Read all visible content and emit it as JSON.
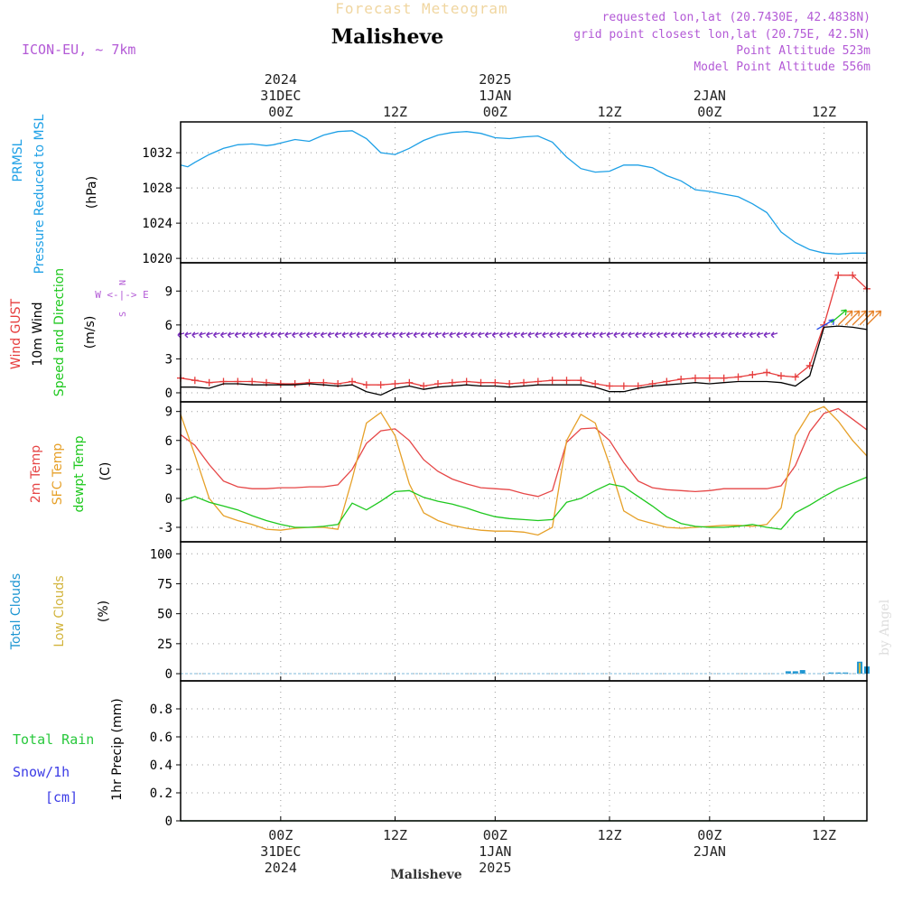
{
  "header": {
    "top_title": "Forecast Meteogram",
    "location": "Malisheve",
    "model": "ICON-EU, ~ 7km",
    "requested": "requested lon,lat (20.7430E, 42.4838N)",
    "grid": "grid point closest lon,lat (20.75E, 42.5N)",
    "point_alt": "Point Altitude 523m",
    "model_alt": "Model Point Altitude 556m",
    "footer_location": "Malisheve",
    "credit": "by Angel"
  },
  "colors": {
    "pressure": "#1ea0e6",
    "gust": "#e63c3c",
    "wind": "#000000",
    "wind_arrow": "#7b2fbe",
    "wind_arrow_alt": "#e67e22",
    "temp": "#e64646",
    "sfc": "#e6a028",
    "dew": "#1ec81e",
    "clouds_total": "#1e96d2",
    "clouds_low": "#d2b43c",
    "rain": "#28c83c",
    "snow": "#3c3ce6",
    "purple": "#b35ad6",
    "grid": "#999999"
  },
  "chart_data": {
    "type": "line",
    "x_unit": "hours since 2024-12-30 15Z",
    "x_range": [
      0,
      48
    ],
    "time_axis": {
      "ticks": [
        {
          "x": 7,
          "top": [
            "2024",
            "31DEC",
            "00Z"
          ],
          "bottom": [
            "00Z",
            "31DEC",
            "2024"
          ]
        },
        {
          "x": 15,
          "top": [
            "12Z"
          ],
          "bottom": [
            "12Z"
          ]
        },
        {
          "x": 22,
          "top": [
            "2025",
            "1JAN",
            "00Z"
          ],
          "bottom": [
            "00Z",
            "1JAN",
            "2025"
          ]
        },
        {
          "x": 30,
          "top": [
            "12Z"
          ],
          "bottom": [
            "12Z"
          ]
        },
        {
          "x": 37,
          "top": [
            "2JAN",
            "00Z"
          ],
          "bottom": [
            "00Z",
            "2JAN"
          ]
        },
        {
          "x": 45,
          "top": [
            "12Z"
          ],
          "bottom": [
            "12Z"
          ]
        }
      ]
    },
    "panels": [
      {
        "id": "pressure",
        "labels": [
          "PRMSL",
          "Pressure Reduced to MSL"
        ],
        "unit": "(hPa)",
        "ylim": [
          1019.5,
          1035.5
        ],
        "yticks": [
          1020,
          1024,
          1028,
          1032
        ],
        "series": [
          {
            "name": "PRMSL",
            "color_key": "pressure",
            "x": [
              0,
              0.5,
              1,
              2,
              3,
              4,
              5,
              6,
              6.5,
              7,
              8,
              9,
              10,
              11,
              12,
              13,
              14,
              15,
              16,
              17,
              18,
              19,
              20,
              21,
              22,
              23,
              24,
              25,
              26,
              27,
              28,
              29,
              30,
              31,
              32,
              33,
              34,
              35,
              36,
              37,
              38,
              39,
              40,
              41,
              42,
              43,
              44,
              45,
              46,
              47,
              48
            ],
            "y": [
              1030.6,
              1030.4,
              1030.9,
              1031.8,
              1032.5,
              1032.9,
              1033.0,
              1032.8,
              1032.9,
              1033.1,
              1033.5,
              1033.3,
              1034.0,
              1034.4,
              1034.5,
              1033.6,
              1032.0,
              1031.8,
              1032.5,
              1033.4,
              1034.0,
              1034.3,
              1034.4,
              1034.2,
              1033.7,
              1033.6,
              1033.8,
              1033.9,
              1033.2,
              1031.5,
              1030.2,
              1029.8,
              1029.9,
              1030.6,
              1030.6,
              1030.3,
              1029.4,
              1028.8,
              1027.8,
              1027.6,
              1027.3,
              1027.0,
              1026.2,
              1025.2,
              1023.0,
              1021.8,
              1021.0,
              1020.6,
              1020.5,
              1020.6,
              1020.6
            ]
          }
        ]
      },
      {
        "id": "wind",
        "labels": [
          "Wind GUST",
          "10m Wind",
          "Speed and Direction"
        ],
        "unit": "(m/s)",
        "compass": [
          "N",
          "W <-|-> E",
          "S"
        ],
        "ylim": [
          -0.8,
          11.5
        ],
        "yticks": [
          0,
          3,
          6,
          9
        ],
        "series": [
          {
            "name": "Wind GUST",
            "color_key": "gust",
            "marker": "plus",
            "x": [
              0,
              1,
              2,
              3,
              4,
              5,
              6,
              7,
              8,
              9,
              10,
              11,
              12,
              13,
              14,
              15,
              16,
              17,
              18,
              19,
              20,
              21,
              22,
              23,
              24,
              25,
              26,
              27,
              28,
              29,
              30,
              31,
              32,
              33,
              34,
              35,
              36,
              37,
              38,
              39,
              40,
              41,
              42,
              43,
              44,
              45,
              46,
              47,
              48
            ],
            "y": [
              1.3,
              1.1,
              0.9,
              1.0,
              1.0,
              1.0,
              0.9,
              0.8,
              0.8,
              0.9,
              0.9,
              0.8,
              1.0,
              0.7,
              0.7,
              0.8,
              0.9,
              0.6,
              0.8,
              0.9,
              1.0,
              0.9,
              0.9,
              0.8,
              0.9,
              1.0,
              1.1,
              1.1,
              1.1,
              0.8,
              0.6,
              0.6,
              0.6,
              0.8,
              1.0,
              1.2,
              1.3,
              1.3,
              1.3,
              1.4,
              1.6,
              1.8,
              1.5,
              1.4,
              2.4,
              6.0,
              10.4,
              10.4,
              9.2
            ]
          },
          {
            "name": "10m Wind",
            "color_key": "wind",
            "x": [
              0,
              1,
              2,
              3,
              4,
              5,
              6,
              7,
              8,
              9,
              10,
              11,
              12,
              13,
              14,
              15,
              16,
              17,
              18,
              19,
              20,
              21,
              22,
              23,
              24,
              25,
              26,
              27,
              28,
              29,
              30,
              31,
              32,
              33,
              34,
              35,
              36,
              37,
              38,
              39,
              40,
              41,
              42,
              43,
              44,
              45,
              46,
              47,
              48
            ],
            "y": [
              0.5,
              0.5,
              0.4,
              0.8,
              0.8,
              0.7,
              0.7,
              0.7,
              0.7,
              0.8,
              0.7,
              0.6,
              0.7,
              0.1,
              -0.2,
              0.4,
              0.6,
              0.3,
              0.5,
              0.6,
              0.7,
              0.6,
              0.6,
              0.5,
              0.6,
              0.7,
              0.7,
              0.7,
              0.7,
              0.5,
              0.1,
              0.1,
              0.4,
              0.6,
              0.7,
              0.8,
              0.9,
              0.8,
              0.9,
              1.0,
              1.0,
              1.0,
              0.9,
              0.6,
              1.5,
              5.8,
              5.9,
              5.8,
              5.6
            ]
          }
        ],
        "arrows": {
          "y": 5.2,
          "x_start": 0,
          "x_step": 0.5,
          "count": 84,
          "calm_from": 43.5,
          "strong": [
            {
              "x": 44.5,
              "y": 5.6,
              "dir_deg": 30
            },
            {
              "x": 45.5,
              "y": 6.2,
              "dir_deg": 40
            },
            {
              "x": 46.0,
              "y": 6.0,
              "dir_deg": 45
            },
            {
              "x": 46.5,
              "y": 6.0,
              "dir_deg": 45
            },
            {
              "x": 47.0,
              "y": 6.0,
              "dir_deg": 45
            },
            {
              "x": 47.5,
              "y": 6.0,
              "dir_deg": 45
            },
            {
              "x": 48.0,
              "y": 6.0,
              "dir_deg": 45
            }
          ]
        }
      },
      {
        "id": "temperature",
        "labels": [
          "2m Temp",
          "SFC Temp",
          "dewpt Temp"
        ],
        "unit": "(C)",
        "ylim": [
          -4.5,
          10
        ],
        "yticks": [
          -3,
          0,
          3,
          6,
          9
        ],
        "series": [
          {
            "name": "2m Temp",
            "color_key": "temp",
            "x": [
              0,
              1,
              2,
              3,
              4,
              5,
              6,
              7,
              8,
              9,
              10,
              11,
              12,
              13,
              14,
              15,
              16,
              17,
              18,
              19,
              20,
              21,
              22,
              23,
              24,
              25,
              26,
              27,
              28,
              29,
              30,
              31,
              32,
              33,
              34,
              35,
              36,
              37,
              38,
              39,
              40,
              41,
              42,
              43,
              44,
              45,
              46,
              47,
              48
            ],
            "y": [
              6.6,
              5.5,
              3.5,
              1.8,
              1.2,
              1.0,
              1.0,
              1.1,
              1.1,
              1.2,
              1.2,
              1.4,
              3.0,
              5.7,
              7.0,
              7.2,
              6.0,
              4.0,
              2.8,
              2.0,
              1.5,
              1.1,
              1.0,
              0.9,
              0.5,
              0.2,
              0.8,
              5.8,
              7.2,
              7.3,
              6.0,
              3.7,
              1.8,
              1.1,
              0.9,
              0.8,
              0.7,
              0.8,
              1.0,
              1.0,
              1.0,
              1.0,
              1.3,
              3.4,
              6.9,
              8.8,
              9.3,
              8.2,
              7.1
            ]
          },
          {
            "name": "SFC Temp",
            "color_key": "sfc",
            "x": [
              0,
              1,
              2,
              3,
              4,
              5,
              6,
              7,
              8,
              9,
              10,
              11,
              12,
              13,
              14,
              15,
              16,
              17,
              18,
              19,
              20,
              21,
              22,
              23,
              24,
              25,
              26,
              27,
              28,
              29,
              30,
              31,
              32,
              33,
              34,
              35,
              36,
              37,
              38,
              39,
              40,
              41,
              42,
              43,
              44,
              45,
              46,
              47,
              48
            ],
            "y": [
              8.7,
              4.5,
              0.0,
              -1.8,
              -2.3,
              -2.7,
              -3.2,
              -3.3,
              -3.1,
              -3.0,
              -3.0,
              -3.2,
              2.0,
              7.8,
              8.9,
              6.5,
              1.5,
              -1.5,
              -2.3,
              -2.8,
              -3.1,
              -3.3,
              -3.4,
              -3.4,
              -3.5,
              -3.8,
              -3.0,
              6.0,
              8.7,
              7.8,
              3.5,
              -1.3,
              -2.2,
              -2.6,
              -3.0,
              -3.1,
              -3.0,
              -2.9,
              -2.8,
              -2.8,
              -2.9,
              -2.7,
              -1.0,
              6.5,
              8.9,
              9.5,
              8.0,
              6.0,
              4.4
            ]
          },
          {
            "name": "dewpt Temp",
            "color_key": "dew",
            "x": [
              0,
              1,
              2,
              3,
              4,
              5,
              6,
              7,
              8,
              9,
              10,
              11,
              12,
              13,
              14,
              15,
              16,
              17,
              18,
              19,
              20,
              21,
              22,
              23,
              24,
              25,
              26,
              27,
              28,
              29,
              30,
              31,
              32,
              33,
              34,
              35,
              36,
              37,
              38,
              39,
              40,
              41,
              42,
              43,
              44,
              45,
              46,
              47,
              48
            ],
            "y": [
              -0.3,
              0.2,
              -0.4,
              -0.8,
              -1.2,
              -1.8,
              -2.3,
              -2.7,
              -3.0,
              -3.0,
              -2.9,
              -2.7,
              -0.5,
              -1.2,
              -0.3,
              0.7,
              0.8,
              0.1,
              -0.3,
              -0.6,
              -1.0,
              -1.5,
              -1.9,
              -2.1,
              -2.2,
              -2.3,
              -2.2,
              -0.4,
              0.0,
              0.8,
              1.5,
              1.2,
              0.2,
              -0.8,
              -1.9,
              -2.6,
              -2.9,
              -3.0,
              -3.0,
              -2.9,
              -2.7,
              -3.0,
              -3.2,
              -1.5,
              -0.7,
              0.2,
              1.0,
              1.6,
              2.2
            ]
          }
        ]
      },
      {
        "id": "clouds",
        "labels": [
          "Total Clouds",
          "Low Clouds"
        ],
        "unit": "(%)",
        "ylim": [
          -6,
          110
        ],
        "yticks": [
          0,
          25,
          50,
          75,
          100
        ],
        "bars": [
          {
            "x": 42.5,
            "total": 2,
            "low": 0
          },
          {
            "x": 43.0,
            "total": 2,
            "low": 0
          },
          {
            "x": 43.5,
            "total": 3,
            "low": 0
          },
          {
            "x": 45.5,
            "total": 1,
            "low": 0
          },
          {
            "x": 46.0,
            "total": 1,
            "low": 0
          },
          {
            "x": 46.5,
            "total": 1,
            "low": 0
          },
          {
            "x": 47.5,
            "total": 10,
            "low": 9
          },
          {
            "x": 48.0,
            "total": 6,
            "low": 0
          }
        ]
      },
      {
        "id": "precip",
        "labels": [
          "Total Rain",
          "Snow/1h",
          "[cm]"
        ],
        "unit": "1hr Precip (mm)",
        "ylim": [
          0,
          1.0
        ],
        "yticks": [
          0,
          0.2,
          0.4,
          0.6,
          0.8
        ],
        "series": [
          {
            "name": "Total Rain",
            "color_key": "rain",
            "x": [
              0,
              48
            ],
            "y": [
              0,
              0
            ]
          }
        ]
      }
    ]
  }
}
